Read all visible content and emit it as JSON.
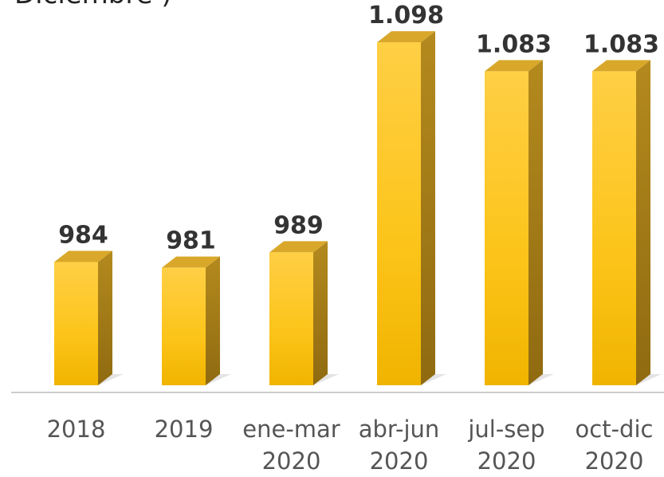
{
  "chart_data": {
    "type": "bar",
    "title": "Diciembre )",
    "categories": [
      "2018",
      "2019",
      "ene-mar 2020",
      "abr-jun 2020",
      "jul-sep 2020",
      "oct-dic 2020"
    ],
    "values": [
      984,
      981,
      989,
      1098,
      1083,
      1083
    ],
    "value_labels": [
      "984",
      "981",
      "989",
      "1.098",
      "1.083",
      "1.083"
    ],
    "color": "#fcc419",
    "ylim": [
      920,
      1120
    ]
  }
}
